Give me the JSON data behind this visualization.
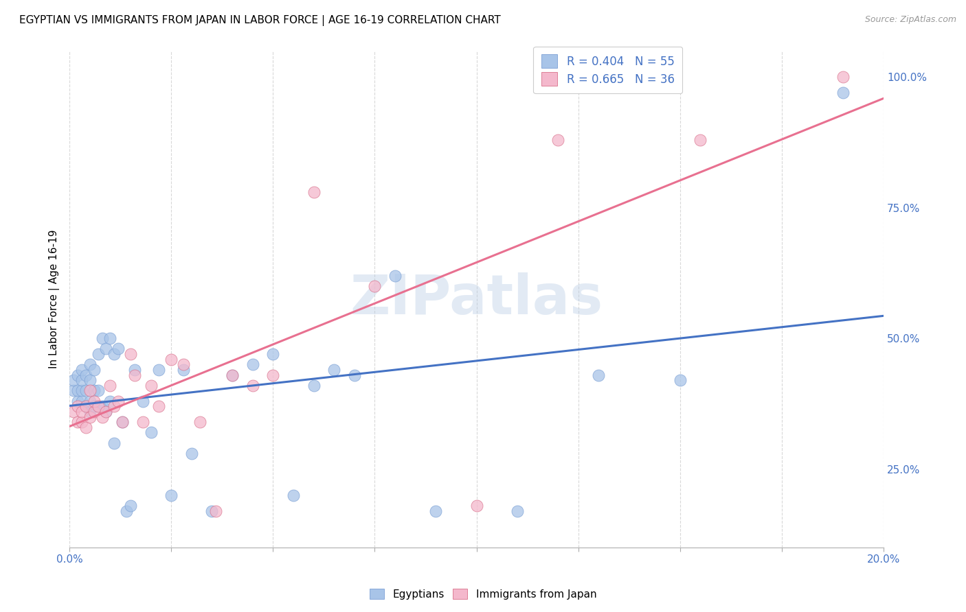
{
  "title": "EGYPTIAN VS IMMIGRANTS FROM JAPAN IN LABOR FORCE | AGE 16-19 CORRELATION CHART",
  "source": "Source: ZipAtlas.com",
  "ylabel": "In Labor Force | Age 16-19",
  "xlim": [
    0.0,
    0.2
  ],
  "ylim": [
    0.1,
    1.05
  ],
  "yticks_right": [
    0.25,
    0.5,
    0.75,
    1.0
  ],
  "ytick_labels_right": [
    "25.0%",
    "50.0%",
    "75.0%",
    "100.0%"
  ],
  "legend_entries": [
    {
      "label": "R = 0.404   N = 55",
      "color": "#a8c4e8"
    },
    {
      "label": "R = 0.665   N = 36",
      "color": "#f4b8cc"
    }
  ],
  "series_egyptian": {
    "color": "#a8c4e8",
    "edge_color": "#7a9fd4",
    "name": "Egyptians",
    "x": [
      0.001,
      0.001,
      0.002,
      0.002,
      0.002,
      0.003,
      0.003,
      0.003,
      0.003,
      0.004,
      0.004,
      0.004,
      0.005,
      0.005,
      0.005,
      0.005,
      0.006,
      0.006,
      0.006,
      0.007,
      0.007,
      0.007,
      0.008,
      0.008,
      0.009,
      0.009,
      0.01,
      0.01,
      0.011,
      0.011,
      0.012,
      0.013,
      0.014,
      0.015,
      0.016,
      0.018,
      0.02,
      0.022,
      0.025,
      0.028,
      0.03,
      0.035,
      0.04,
      0.045,
      0.05,
      0.055,
      0.06,
      0.065,
      0.07,
      0.08,
      0.09,
      0.11,
      0.13,
      0.15,
      0.19
    ],
    "y": [
      0.4,
      0.42,
      0.38,
      0.4,
      0.43,
      0.38,
      0.4,
      0.42,
      0.44,
      0.37,
      0.4,
      0.43,
      0.36,
      0.38,
      0.42,
      0.45,
      0.37,
      0.4,
      0.44,
      0.37,
      0.4,
      0.47,
      0.37,
      0.5,
      0.36,
      0.48,
      0.38,
      0.5,
      0.3,
      0.47,
      0.48,
      0.34,
      0.17,
      0.18,
      0.44,
      0.38,
      0.32,
      0.44,
      0.2,
      0.44,
      0.28,
      0.17,
      0.43,
      0.45,
      0.47,
      0.2,
      0.41,
      0.44,
      0.43,
      0.62,
      0.17,
      0.17,
      0.43,
      0.42,
      0.97
    ]
  },
  "series_japan": {
    "color": "#f4b8cc",
    "edge_color": "#d8708a",
    "name": "Immigrants from Japan",
    "x": [
      0.001,
      0.002,
      0.002,
      0.003,
      0.003,
      0.004,
      0.004,
      0.005,
      0.005,
      0.006,
      0.006,
      0.007,
      0.008,
      0.009,
      0.01,
      0.011,
      0.012,
      0.013,
      0.015,
      0.016,
      0.018,
      0.02,
      0.022,
      0.025,
      0.028,
      0.032,
      0.036,
      0.04,
      0.045,
      0.05,
      0.06,
      0.075,
      0.1,
      0.12,
      0.155,
      0.19
    ],
    "y": [
      0.36,
      0.34,
      0.37,
      0.34,
      0.36,
      0.33,
      0.37,
      0.35,
      0.4,
      0.36,
      0.38,
      0.37,
      0.35,
      0.36,
      0.41,
      0.37,
      0.38,
      0.34,
      0.47,
      0.43,
      0.34,
      0.41,
      0.37,
      0.46,
      0.45,
      0.34,
      0.17,
      0.43,
      0.41,
      0.43,
      0.78,
      0.6,
      0.18,
      0.88,
      0.88,
      1.0
    ]
  },
  "watermark": "ZIPatlas",
  "blue_line_color": "#4472c4",
  "pink_line_color": "#e87090",
  "background_color": "#ffffff",
  "grid_color": "#d8d8d8",
  "title_fontsize": 11,
  "axis_tick_color": "#4472c4"
}
